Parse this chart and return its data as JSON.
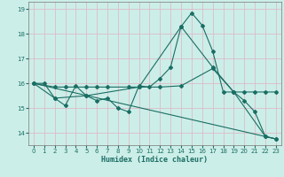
{
  "xlabel": "Humidex (Indice chaleur)",
  "bg_color": "#cceee8",
  "grid_color": "#ddbbc8",
  "line_color": "#1a6e64",
  "xlim": [
    -0.5,
    23.5
  ],
  "ylim": [
    13.5,
    19.3
  ],
  "yticks": [
    14,
    15,
    16,
    17,
    18,
    19
  ],
  "xticks": [
    0,
    1,
    2,
    3,
    4,
    5,
    6,
    7,
    8,
    9,
    10,
    11,
    12,
    13,
    14,
    15,
    16,
    17,
    18,
    19,
    20,
    21,
    22,
    23
  ],
  "line1_x": [
    0,
    1,
    2,
    3,
    4,
    5,
    6,
    7,
    8,
    9,
    10,
    11,
    12,
    13,
    14,
    15,
    16,
    17,
    18,
    19,
    20,
    21,
    22,
    23
  ],
  "line1_y": [
    16.0,
    16.0,
    15.4,
    15.1,
    15.9,
    15.5,
    15.3,
    15.4,
    15.0,
    14.85,
    15.9,
    15.85,
    16.2,
    16.65,
    18.3,
    18.85,
    18.35,
    17.3,
    15.65,
    15.65,
    15.3,
    14.85,
    13.85,
    13.75
  ],
  "line2_x": [
    0,
    2,
    3,
    5,
    6,
    7,
    9,
    10,
    12,
    14,
    17,
    19,
    20,
    21,
    22,
    23
  ],
  "line2_y": [
    16.0,
    15.85,
    15.85,
    15.85,
    15.85,
    15.85,
    15.85,
    15.85,
    15.85,
    15.9,
    16.6,
    15.65,
    15.65,
    15.65,
    15.65,
    15.65
  ],
  "line3_x": [
    0,
    2,
    5,
    10,
    14,
    17,
    19,
    22,
    23
  ],
  "line3_y": [
    16.0,
    15.4,
    15.5,
    15.85,
    18.3,
    16.65,
    15.65,
    13.85,
    13.75
  ],
  "line4_x": [
    0,
    23
  ],
  "line4_y": [
    16.0,
    13.75
  ]
}
